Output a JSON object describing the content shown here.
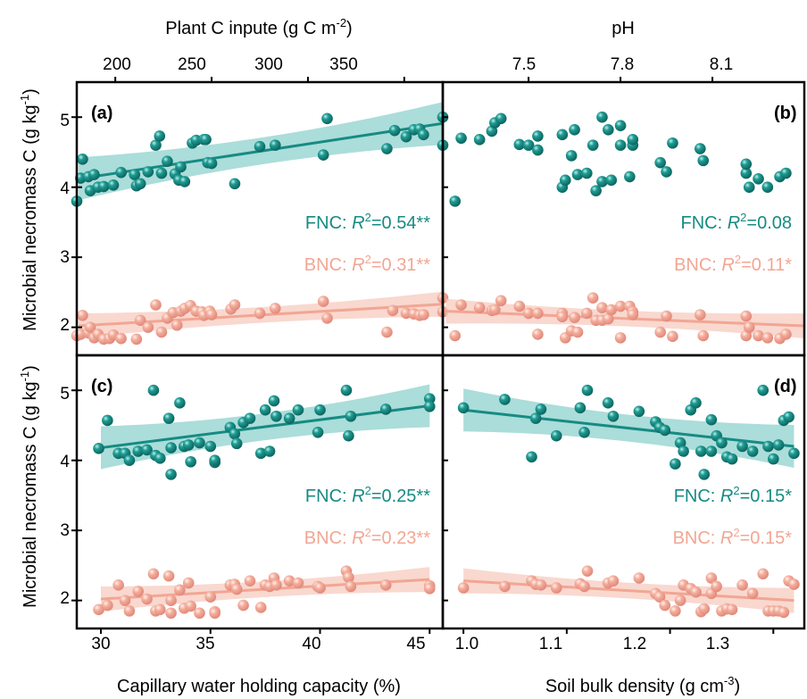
{
  "colors": {
    "fnc": "#168b83",
    "fnc_band": "#8fd2cd",
    "bnc": "#f2a693",
    "bnc_band": "#f7cbbf"
  },
  "labels": {
    "top_left": "Plant C inpute (g C m",
    "top_left_sup": "-2",
    "top_left_end": ")",
    "top_right": "pH",
    "y_top": "Microbial necromass C (g kg",
    "y_bottom": "Microbial necromass C (g kg",
    "y_sup": "-1",
    "y_end": ")",
    "bottom_left": "Capillary water holding capacity (%)",
    "bottom_right": "Soil bulk density (g cm",
    "bottom_right_sup": "-3",
    "bottom_right_end": ")"
  },
  "ticks": {
    "top_left": [
      "200",
      "250",
      "300",
      "350"
    ],
    "top_right": [
      "7.5",
      "7.8",
      "8.1"
    ],
    "bottom_left": [
      "30",
      "35",
      "40",
      "45"
    ],
    "bottom_right": [
      "1.0",
      "1.1",
      "1.2",
      "1.3"
    ],
    "y": [
      "2",
      "3",
      "4",
      "5"
    ]
  },
  "chart_data": [
    {
      "panel": "(a)",
      "type": "scatter",
      "xlabel": "Plant C inpute (g C m-2)",
      "xlim": [
        180,
        370
      ],
      "ylim": [
        1.6,
        5.5
      ],
      "series": [
        {
          "name": "FNC",
          "r2_label": "FNC: ",
          "r2_value": "=0.54**",
          "fit": [
            [
              181,
              4.12
            ],
            [
              370,
              4.91
            ]
          ],
          "x": [
            180,
            182,
            183,
            186,
            187,
            189,
            191,
            194,
            199,
            203,
            210,
            211,
            213,
            217,
            221,
            223,
            224,
            227,
            231,
            233,
            234,
            236,
            240,
            242,
            246,
            247,
            248,
            250,
            262,
            275,
            283,
            308,
            310,
            341,
            345,
            351,
            355,
            358,
            360,
            370,
            370
          ],
          "y": [
            3.8,
            4.13,
            4.4,
            4.15,
            3.95,
            4.18,
            4.0,
            4.01,
            4.03,
            4.21,
            4.18,
            4.02,
            4.05,
            4.22,
            4.6,
            4.73,
            4.2,
            4.37,
            4.19,
            4.1,
            4.29,
            4.08,
            4.63,
            4.67,
            4.68,
            4.68,
            4.35,
            4.34,
            4.05,
            4.58,
            4.6,
            4.46,
            4.98,
            4.55,
            4.81,
            4.72,
            4.82,
            4.83,
            4.75,
            5.0,
            4.6
          ]
        },
        {
          "name": "BNC",
          "r2_label": "BNC: ",
          "r2_value": "=0.31**",
          "fit": [
            [
              181,
              2.02
            ],
            [
              370,
              2.33
            ]
          ],
          "x": [
            180,
            182,
            183,
            186,
            187,
            189,
            191,
            194,
            197,
            199,
            203,
            211,
            213,
            217,
            221,
            224,
            227,
            230,
            232,
            234,
            236,
            239,
            242,
            245,
            246,
            249,
            250,
            260,
            262,
            275,
            283,
            308,
            310,
            341,
            344,
            351,
            355,
            358,
            360,
            370,
            370
          ],
          "y": [
            1.88,
            1.9,
            2.17,
            1.92,
            2.0,
            1.85,
            1.9,
            1.83,
            1.84,
            1.89,
            1.84,
            1.83,
            2.1,
            2.0,
            2.32,
            1.93,
            2.13,
            2.21,
            2.03,
            2.23,
            2.27,
            2.31,
            2.23,
            2.22,
            2.17,
            2.23,
            2.18,
            2.26,
            2.32,
            2.2,
            2.27,
            2.37,
            2.13,
            1.93,
            2.24,
            2.2,
            2.19,
            2.17,
            2.18,
            2.42,
            2.22
          ]
        }
      ]
    },
    {
      "panel": "(b)",
      "type": "scatter",
      "xlabel": "pH",
      "xlim": [
        7.22,
        8.4
      ],
      "ylim": [
        1.6,
        5.5
      ],
      "series": [
        {
          "name": "FNC",
          "r2_label": "FNC: ",
          "r2_value": "=0.08",
          "fit": null,
          "x": [
            7.26,
            7.28,
            7.34,
            7.38,
            7.39,
            7.41,
            7.47,
            7.5,
            7.53,
            7.53,
            7.61,
            7.61,
            7.62,
            7.64,
            7.65,
            7.66,
            7.69,
            7.71,
            7.72,
            7.74,
            7.74,
            7.76,
            7.77,
            7.8,
            7.8,
            7.83,
            7.84,
            7.84,
            7.93,
            7.95,
            7.97,
            8.06,
            8.07,
            8.21,
            8.21,
            8.22,
            8.25,
            8.28,
            8.32,
            8.34
          ],
          "y": [
            3.8,
            4.7,
            4.68,
            4.8,
            4.92,
            4.98,
            4.61,
            4.6,
            4.53,
            4.73,
            4.75,
            4.0,
            4.1,
            4.45,
            4.82,
            4.18,
            4.2,
            4.6,
            3.95,
            4.08,
            5.0,
            4.82,
            4.1,
            4.6,
            4.88,
            4.15,
            4.6,
            4.68,
            4.35,
            4.22,
            4.63,
            4.55,
            4.38,
            4.2,
            4.33,
            4.0,
            4.12,
            4.0,
            4.15,
            4.2
          ]
        },
        {
          "name": "BNC",
          "r2_label": "BNC: ",
          "r2_value": "=0.11*",
          "fit": [
            [
              7.23,
              2.23
            ],
            [
              8.4,
              2.02
            ]
          ],
          "x": [
            7.26,
            7.28,
            7.34,
            7.38,
            7.39,
            7.41,
            7.47,
            7.5,
            7.53,
            7.53,
            7.61,
            7.61,
            7.62,
            7.64,
            7.65,
            7.66,
            7.69,
            7.71,
            7.72,
            7.74,
            7.74,
            7.76,
            7.77,
            7.8,
            7.8,
            7.83,
            7.84,
            7.84,
            7.93,
            7.95,
            7.97,
            8.06,
            8.07,
            8.21,
            8.21,
            8.22,
            8.25,
            8.28,
            8.32,
            8.34
          ],
          "y": [
            1.88,
            2.32,
            2.28,
            2.24,
            2.25,
            2.38,
            2.3,
            2.2,
            2.2,
            1.9,
            2.2,
            2.15,
            1.85,
            1.95,
            2.14,
            1.93,
            2.2,
            2.42,
            2.1,
            2.1,
            2.28,
            2.12,
            2.25,
            1.85,
            2.3,
            2.3,
            2.22,
            2.18,
            1.93,
            2.16,
            1.87,
            2.18,
            1.88,
            2.16,
            1.88,
            2.0,
            1.88,
            1.85,
            1.84,
            1.9
          ]
        }
      ]
    },
    {
      "panel": "(c)",
      "type": "scatter",
      "xlabel": "Capillary water holding capacity (%)",
      "xlim": [
        28.9,
        45.6
      ],
      "ylim": [
        1.6,
        5.5
      ],
      "series": [
        {
          "name": "FNC",
          "r2_label": "FNC: ",
          "r2_value": "=0.25**",
          "fit": [
            [
              30,
              4.18
            ],
            [
              45,
              4.78
            ]
          ],
          "x": [
            29.9,
            30.3,
            30.8,
            31.1,
            31.3,
            31.7,
            32.1,
            32.4,
            32.5,
            32.7,
            33.1,
            33.2,
            33.2,
            33.6,
            33.8,
            34.0,
            34.1,
            34.5,
            35.0,
            35.2,
            35.2,
            35.9,
            36.1,
            36.2,
            36.5,
            36.8,
            37.3,
            37.5,
            37.7,
            37.9,
            38.0,
            38.6,
            39.0,
            39.9,
            40.0,
            41.2,
            41.3,
            41.4,
            43.0,
            45.0,
            45.0
          ],
          "y": [
            4.17,
            4.57,
            4.1,
            4.1,
            4.0,
            4.13,
            4.15,
            5.0,
            4.07,
            4.03,
            4.6,
            3.8,
            4.18,
            4.82,
            4.2,
            4.22,
            3.98,
            4.25,
            4.2,
            3.97,
            4.0,
            4.47,
            4.38,
            4.24,
            4.54,
            4.6,
            4.1,
            4.72,
            4.13,
            4.85,
            4.63,
            4.6,
            4.72,
            4.4,
            4.72,
            5.0,
            4.35,
            4.63,
            4.73,
            4.88,
            4.77
          ]
        },
        {
          "name": "BNC",
          "r2_label": "BNC: ",
          "r2_value": "=0.23**",
          "fit": [
            [
              30,
              2.02
            ],
            [
              45,
              2.3
            ]
          ],
          "x": [
            29.9,
            30.3,
            30.8,
            31.1,
            31.3,
            31.7,
            32.1,
            32.4,
            32.5,
            32.7,
            33.1,
            33.2,
            33.2,
            33.6,
            33.8,
            34.0,
            34.1,
            34.5,
            35.0,
            35.2,
            35.2,
            35.9,
            36.1,
            36.2,
            36.5,
            36.8,
            37.3,
            37.5,
            37.7,
            37.9,
            38.0,
            38.6,
            39.0,
            39.9,
            40.0,
            41.2,
            41.3,
            41.4,
            43.0,
            45.0,
            45.0
          ],
          "y": [
            1.87,
            1.93,
            2.22,
            2.0,
            1.85,
            2.13,
            2.02,
            2.38,
            1.85,
            1.87,
            2.35,
            1.82,
            2.0,
            2.15,
            1.89,
            2.25,
            1.92,
            1.82,
            2.05,
            1.84,
            1.82,
            2.22,
            2.23,
            2.16,
            1.93,
            2.28,
            1.9,
            2.22,
            2.2,
            2.32,
            2.22,
            2.28,
            2.25,
            2.2,
            2.18,
            2.42,
            2.33,
            2.2,
            2.22,
            2.21,
            2.17
          ]
        }
      ]
    },
    {
      "panel": "(d)",
      "type": "scatter",
      "xlabel": "Soil bulk density (g cm-3)",
      "xlim": [
        0.98,
        1.33
      ],
      "ylim": [
        1.6,
        5.5
      ],
      "series": [
        {
          "name": "FNC",
          "r2_label": "FNC: ",
          "r2_value": "=0.15*",
          "fit": [
            [
              1.0,
              4.72
            ],
            [
              1.32,
              4.2
            ]
          ],
          "x": [
            1.0,
            1.04,
            1.066,
            1.07,
            1.075,
            1.09,
            1.113,
            1.117,
            1.12,
            1.14,
            1.145,
            1.17,
            1.186,
            1.19,
            1.195,
            1.205,
            1.21,
            1.213,
            1.22,
            1.225,
            1.23,
            1.233,
            1.24,
            1.24,
            1.245,
            1.25,
            1.255,
            1.26,
            1.27,
            1.28,
            1.29,
            1.295,
            1.3,
            1.305,
            1.31,
            1.315,
            1.32
          ],
          "y": [
            4.75,
            4.87,
            4.05,
            4.6,
            4.73,
            4.35,
            4.75,
            4.4,
            5.0,
            4.82,
            4.63,
            4.7,
            4.55,
            4.47,
            4.43,
            3.95,
            4.25,
            4.13,
            4.72,
            4.82,
            4.13,
            3.8,
            4.13,
            4.58,
            4.35,
            4.25,
            4.05,
            4.02,
            4.2,
            4.13,
            5.0,
            4.2,
            4.02,
            4.22,
            4.57,
            4.62,
            4.1
          ]
        },
        {
          "name": "BNC",
          "r2_label": "BNC: ",
          "r2_value": "=0.15*",
          "fit": [
            [
              1.0,
              2.28
            ],
            [
              1.32,
              2.0
            ]
          ],
          "x": [
            1.0,
            1.04,
            1.066,
            1.07,
            1.075,
            1.09,
            1.113,
            1.117,
            1.12,
            1.14,
            1.145,
            1.17,
            1.186,
            1.19,
            1.195,
            1.205,
            1.21,
            1.213,
            1.22,
            1.225,
            1.23,
            1.233,
            1.24,
            1.24,
            1.245,
            1.25,
            1.255,
            1.26,
            1.27,
            1.28,
            1.29,
            1.295,
            1.3,
            1.305,
            1.31,
            1.315,
            1.32
          ],
          "y": [
            2.18,
            2.2,
            2.28,
            2.23,
            2.22,
            2.18,
            2.24,
            2.2,
            2.42,
            2.25,
            2.28,
            2.32,
            2.1,
            2.05,
            1.93,
            1.85,
            2.0,
            2.22,
            2.17,
            2.12,
            1.84,
            1.88,
            2.32,
            2.1,
            2.2,
            1.85,
            1.88,
            1.87,
            2.22,
            2.1,
            2.38,
            1.85,
            1.85,
            1.85,
            1.83,
            2.28,
            2.23
          ]
        }
      ]
    }
  ]
}
